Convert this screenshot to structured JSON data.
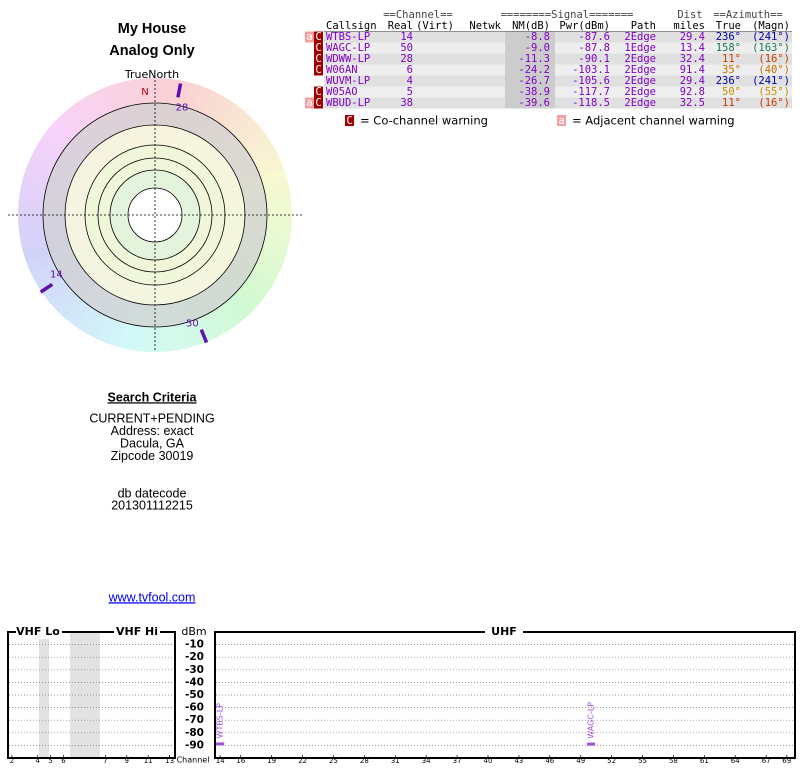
{
  "header": {
    "title": "My House",
    "subtitle": "Analog Only"
  },
  "polar": {
    "north_label": "TrueNorth",
    "north_mark": "N",
    "markers": [
      {
        "label": "28",
        "azimuth": 11,
        "nm": -11.3
      },
      {
        "label": "14",
        "azimuth": 236,
        "nm": -8.8
      },
      {
        "label": "50",
        "azimuth": 158,
        "nm": -9.0
      }
    ]
  },
  "table": {
    "group_headers": [
      "==Channel==",
      "========Signal=======",
      "Dist",
      "==Azimuth=="
    ],
    "columns": [
      "Callsign",
      "Real",
      "(Virt)",
      "Netwk",
      "NM(dB)",
      "Pwr(dBm)",
      "Path",
      "miles",
      "True",
      "(Magn)"
    ],
    "rows": [
      {
        "flags": [
          "a",
          "C"
        ],
        "callsign": "WTBS-LP",
        "real": "14",
        "nm": "-8.8",
        "pwr": "-87.6",
        "path": "2Edge",
        "dist": "29.4",
        "true": "236°",
        "magn": "(241°)",
        "azimuth_color": "#0000a0"
      },
      {
        "flags": [
          "C"
        ],
        "callsign": "WAGC-LP",
        "real": "50",
        "nm": "-9.0",
        "pwr": "-87.8",
        "path": "1Edge",
        "dist": "13.4",
        "true": "158°",
        "magn": "(163°)",
        "azimuth_color": "#1a7a5a"
      },
      {
        "flags": [
          "C"
        ],
        "callsign": "WDWW-LP",
        "real": "28",
        "nm": "-11.3",
        "pwr": "-90.1",
        "path": "2Edge",
        "dist": "32.4",
        "true": "11°",
        "magn": "(16°)",
        "azimuth_color": "#c83c00"
      },
      {
        "flags": [
          "C"
        ],
        "callsign": "W06AN",
        "real": "6",
        "nm": "-24.2",
        "pwr": "-103.1",
        "path": "2Edge",
        "dist": "91.4",
        "true": "35°",
        "magn": "(40°)",
        "azimuth_color": "#c86e00"
      },
      {
        "flags": [],
        "callsign": "WUVM-LP",
        "real": "4",
        "nm": "-26.7",
        "pwr": "-105.6",
        "path": "2Edge",
        "dist": "29.4",
        "true": "236°",
        "magn": "(241°)",
        "azimuth_color": "#0000a0"
      },
      {
        "flags": [
          "C"
        ],
        "callsign": "W05AO",
        "real": "5",
        "nm": "-38.9",
        "pwr": "-117.7",
        "path": "2Edge",
        "dist": "92.8",
        "true": "50°",
        "magn": "(55°)",
        "azimuth_color": "#c89000"
      },
      {
        "flags": [
          "a",
          "C"
        ],
        "callsign": "WBUD-LP",
        "real": "38",
        "nm": "-39.6",
        "pwr": "-118.5",
        "path": "2Edge",
        "dist": "32.5",
        "true": "11°",
        "magn": "(16°)",
        "azimuth_color": "#c83c00"
      }
    ],
    "callsign_color": "#8000c8"
  },
  "legend": {
    "co_icon": "C",
    "co_text": "= Co-channel warning",
    "adj_icon": "a",
    "adj_text": "= Adjacent channel warning"
  },
  "search": {
    "title": "Search Criteria",
    "lines": [
      "CURRENT+PENDING",
      "Address: exact",
      "Dacula, GA",
      "Zipcode 30019"
    ],
    "datecode_label": "db datecode",
    "datecode": "201301112215",
    "link": "www.tvfool.com"
  },
  "spectrum": {
    "vhf_lo_title": "VHF Lo",
    "vhf_hi_title": "VHF Hi",
    "uhf_title": "UHF",
    "y_title": "dBm",
    "x_title": "Channel",
    "ylim": [
      -100,
      0
    ],
    "yticks": [
      -10,
      -20,
      -30,
      -40,
      -50,
      -60,
      -70,
      -80,
      -90
    ],
    "grid": true,
    "vhf_lo_xlim": [
      1.7,
      6.5
    ],
    "vhf_lo_ticks": [
      2,
      4,
      5,
      6
    ],
    "vhf_hi_xlim": [
      6.5,
      13.5
    ],
    "vhf_hi_ticks": [
      7,
      9,
      11,
      13
    ],
    "uhf_xlim": [
      13.5,
      69.8
    ],
    "uhf_ticks": [
      14,
      16,
      19,
      22,
      25,
      28,
      31,
      34,
      37,
      40,
      43,
      46,
      49,
      52,
      55,
      58,
      61,
      64,
      67,
      69
    ],
    "bar_color": "#a050e0",
    "bars": [
      {
        "label": "WTBS-LP",
        "channel": 14,
        "value": -87.6
      },
      {
        "label": "WAGC-LP",
        "channel": 50,
        "value": -87.8
      }
    ]
  }
}
